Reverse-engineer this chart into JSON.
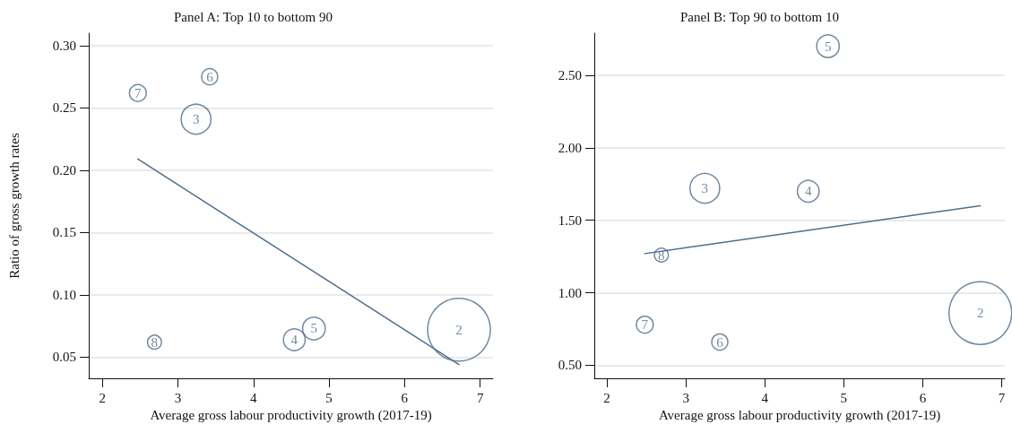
{
  "chart_data": [
    {
      "type": "bubble",
      "title": "Panel A: Top 10 to bottom 90",
      "xlabel": "Average gross labour productivity growth (2017-19)",
      "ylabel": "Ratio of gross growth rates",
      "xlim": [
        1.82,
        7.17
      ],
      "xticks": [
        2,
        3,
        4,
        5,
        6,
        7
      ],
      "ylim": [
        0.033,
        0.31
      ],
      "yticks": [
        {
          "value": 0.05,
          "label": "0.05"
        },
        {
          "value": 0.1,
          "label": "0.10"
        },
        {
          "value": 0.15,
          "label": "0.15"
        },
        {
          "value": 0.2,
          "label": "0.20"
        },
        {
          "value": 0.25,
          "label": "0.25"
        },
        {
          "value": 0.3,
          "label": "0.30"
        }
      ],
      "grid": "y",
      "legend": false,
      "series": [
        {
          "name": "7",
          "color": "#4e6d8c",
          "marker": "circle",
          "x": [
            2.47
          ],
          "values": [
            0.262
          ],
          "sizes": [
            0.072
          ]
        },
        {
          "name": "6",
          "color": "#4e6d8c",
          "marker": "circle",
          "x": [
            3.42
          ],
          "values": [
            0.275
          ],
          "sizes": [
            0.066
          ]
        },
        {
          "name": "3",
          "color": "#4e6d8c",
          "marker": "circle",
          "x": [
            3.24
          ],
          "values": [
            0.241
          ],
          "sizes": [
            0.225
          ]
        },
        {
          "name": "8",
          "color": "#4e6d8c",
          "marker": "circle",
          "x": [
            2.69
          ],
          "values": [
            0.062
          ],
          "sizes": [
            0.049
          ]
        },
        {
          "name": "4",
          "color": "#4e6d8c",
          "marker": "circle",
          "x": [
            4.54
          ],
          "values": [
            0.064
          ],
          "sizes": [
            0.12
          ]
        },
        {
          "name": "5",
          "color": "#4e6d8c",
          "marker": "circle",
          "x": [
            4.8
          ],
          "values": [
            0.073
          ],
          "sizes": [
            0.13
          ]
        },
        {
          "name": "2",
          "color": "#4e6d8c",
          "marker": "circle",
          "x": [
            6.72
          ],
          "values": [
            0.072
          ],
          "sizes": [
            1
          ]
        },
        {
          "type": "line",
          "color": "#4e6d8c",
          "x": [
            2.47,
            6.72
          ],
          "values": [
            0.209,
            0.044
          ]
        }
      ]
    },
    {
      "type": "bubble",
      "title": "Panel B: Top 90 to bottom 10",
      "xlabel": "Average gross labour productivity growth (2017-19)",
      "xlim": [
        1.84,
        7.04
      ],
      "xticks": [
        2,
        3,
        4,
        5,
        6,
        7
      ],
      "ylim": [
        0.41,
        2.79
      ],
      "yticks": [
        {
          "value": 0.5,
          "label": "0.50"
        },
        {
          "value": 1,
          "label": "1.00"
        },
        {
          "value": 1.5,
          "label": "1.50"
        },
        {
          "value": 2,
          "label": "2.00"
        },
        {
          "value": 2.5,
          "label": "2.50"
        }
      ],
      "grid": "y",
      "legend": false,
      "series": [
        {
          "name": "5",
          "color": "#4e6d8c",
          "marker": "circle",
          "x": [
            4.8
          ],
          "values": [
            2.7
          ],
          "sizes": [
            0.13
          ]
        },
        {
          "name": "3",
          "color": "#4e6d8c",
          "marker": "circle",
          "x": [
            3.24
          ],
          "values": [
            1.72
          ],
          "sizes": [
            0.225
          ]
        },
        {
          "name": "4",
          "color": "#4e6d8c",
          "marker": "circle",
          "x": [
            4.55
          ],
          "values": [
            1.7
          ],
          "sizes": [
            0.12
          ]
        },
        {
          "name": "8",
          "color": "#4e6d8c",
          "marker": "circle",
          "x": [
            2.69
          ],
          "values": [
            1.26
          ],
          "sizes": [
            0.049
          ]
        },
        {
          "name": "7",
          "color": "#4e6d8c",
          "marker": "circle",
          "x": [
            2.48
          ],
          "values": [
            0.78
          ],
          "sizes": [
            0.072
          ]
        },
        {
          "name": "6",
          "color": "#4e6d8c",
          "marker": "circle",
          "x": [
            3.43
          ],
          "values": [
            0.66
          ],
          "sizes": [
            0.066
          ]
        },
        {
          "name": "2",
          "color": "#4e6d8c",
          "marker": "circle",
          "x": [
            6.73
          ],
          "values": [
            0.86
          ],
          "sizes": [
            1
          ]
        },
        {
          "type": "line",
          "color": "#4e6d8c",
          "x": [
            2.48,
            6.73
          ],
          "values": [
            1.27,
            1.6
          ]
        }
      ]
    }
  ]
}
